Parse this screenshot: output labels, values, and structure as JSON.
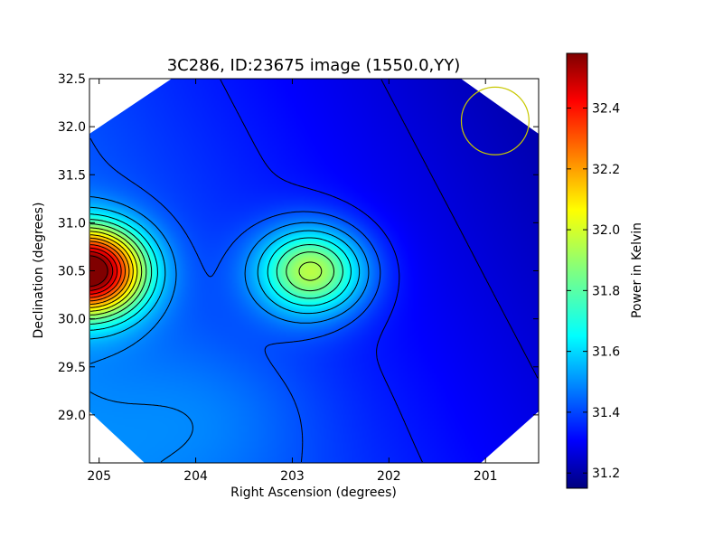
{
  "chart_data": {
    "type": "heatmap",
    "title": "3C286, ID:23675 image (1550.0,YY)",
    "xlabel": "Right Ascension (degrees)",
    "ylabel": "Declination (degrees)",
    "xlim": [
      205.1,
      200.45
    ],
    "ylim": [
      28.5,
      32.5
    ],
    "x_ticks": [
      205,
      204,
      203,
      202,
      201
    ],
    "x_tick_labels": [
      "205",
      "204",
      "203",
      "202",
      "201"
    ],
    "y_ticks": [
      29.0,
      29.5,
      30.0,
      30.5,
      31.0,
      31.5,
      32.0,
      32.5
    ],
    "y_tick_labels": [
      "29.0",
      "29.5",
      "30.0",
      "30.5",
      "31.0",
      "31.5",
      "32.0",
      "32.5"
    ],
    "colorbar": {
      "label": "Power in Kelvin",
      "range": [
        31.15,
        32.58
      ],
      "ticks": [
        31.2,
        31.4,
        31.6,
        31.8,
        32.0,
        32.2,
        32.4
      ],
      "tick_labels": [
        "31.2",
        "31.4",
        "31.6",
        "31.8",
        "32.0",
        "32.2",
        "32.4"
      ],
      "colormap": "jet"
    },
    "sources": [
      {
        "ra": 205.1,
        "dec": 30.5,
        "peak": 32.58
      },
      {
        "ra": 202.8,
        "dec": 30.5,
        "peak": 31.93
      }
    ],
    "background_level": 31.35,
    "beam_circle": {
      "ra": 200.9,
      "dec": 32.06,
      "radius_deg": 0.35,
      "color": "#c8c800"
    },
    "contour_color": "#000000"
  }
}
